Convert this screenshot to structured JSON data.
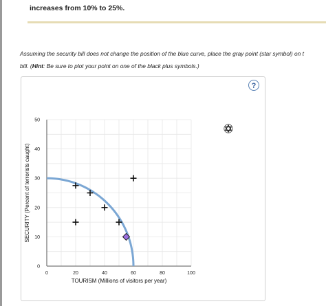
{
  "question": {
    "prev_text": "increases from 10% to 25%."
  },
  "instructions": {
    "line1": "Assuming the security bill does not change the position of the blue curve, place the gray point (star symbol) on t",
    "line2_pre": "bill. (",
    "hint_label": "Hint",
    "line2_post": ": Be sure to plot your point on one of the black plus symbols.)"
  },
  "help": {
    "label": "?"
  },
  "palette": {
    "star_icon": "star-of-david-icon"
  },
  "chart_data": {
    "type": "scatter",
    "xlabel": "TOURISM (Millions of visitors per year)",
    "ylabel": "SECURITY (Percent of terrorists caught)",
    "xlim": [
      0,
      100
    ],
    "ylim": [
      0,
      50
    ],
    "x_ticks": [
      0,
      20,
      40,
      60,
      80,
      100
    ],
    "y_ticks": [
      0,
      10,
      20,
      30,
      40,
      50
    ],
    "x_tick_labels": [
      "0",
      "20",
      "40",
      "60",
      "80",
      "100"
    ],
    "y_tick_labels": [
      "0",
      "10",
      "20",
      "30",
      "40",
      "50"
    ],
    "grid": true,
    "ppf_curve": {
      "color": "#7ba7d4",
      "x_max": 60,
      "y_max": 30
    },
    "plus_points": [
      {
        "x": 20,
        "y": 27.5
      },
      {
        "x": 30,
        "y": 25
      },
      {
        "x": 40,
        "y": 20
      },
      {
        "x": 50,
        "y": 15
      },
      {
        "x": 20,
        "y": 15
      },
      {
        "x": 60,
        "y": 30
      }
    ],
    "plus_color": "#111111",
    "diamond_point": {
      "x": 55,
      "y": 10,
      "color": "#9a6ee0"
    }
  }
}
